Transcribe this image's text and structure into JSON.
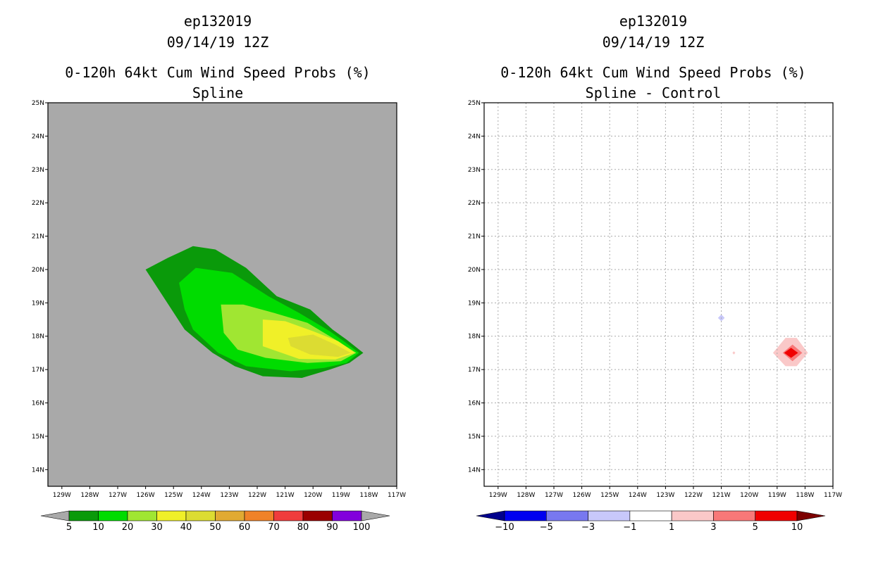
{
  "chart_data": [
    {
      "type": "heatmap",
      "panel": "left",
      "title": [
        "ep132019",
        "09/14/19 12Z",
        "0-120h 64kt Cum Wind Speed Probs (%)",
        "Spline"
      ],
      "x_ticks": [
        "129W",
        "128W",
        "127W",
        "126W",
        "125W",
        "124W",
        "123W",
        "122W",
        "121W",
        "120W",
        "119W",
        "118W",
        "117W"
      ],
      "y_ticks": [
        "14N",
        "15N",
        "16N",
        "17N",
        "18N",
        "19N",
        "20N",
        "21N",
        "22N",
        "23N",
        "24N",
        "25N"
      ],
      "xlim": [
        -129.5,
        -117
      ],
      "ylim": [
        13.5,
        25
      ],
      "background": "#a9a9a9",
      "grid": false,
      "contours": [
        {
          "level": 5,
          "color": "#0a9a0a",
          "polygon": [
            [
              -126,
              20
            ],
            [
              -125.2,
              20.35
            ],
            [
              -124.3,
              20.7
            ],
            [
              -123.5,
              20.6
            ],
            [
              -122.4,
              20.05
            ],
            [
              -121.3,
              19.2
            ],
            [
              -120.1,
              18.8
            ],
            [
              -119.3,
              18.2
            ],
            [
              -118.8,
              17.9
            ],
            [
              -118.2,
              17.5
            ],
            [
              -118.7,
              17.2
            ],
            [
              -119.4,
              17
            ],
            [
              -120.4,
              16.75
            ],
            [
              -121.8,
              16.8
            ],
            [
              -122.8,
              17.1
            ],
            [
              -123.6,
              17.5
            ],
            [
              -124.6,
              18.2
            ],
            [
              -125.3,
              19.1
            ]
          ]
        },
        {
          "level": 10,
          "color": "#00dc00",
          "polygon": [
            [
              -124.8,
              19.6
            ],
            [
              -124.2,
              20.05
            ],
            [
              -122.9,
              19.9
            ],
            [
              -121.6,
              19.2
            ],
            [
              -120.5,
              18.7
            ],
            [
              -119.4,
              18.15
            ],
            [
              -118.9,
              17.85
            ],
            [
              -118.35,
              17.5
            ],
            [
              -118.8,
              17.2
            ],
            [
              -119.6,
              17.05
            ],
            [
              -120.8,
              16.95
            ],
            [
              -122.4,
              17.1
            ],
            [
              -123.4,
              17.5
            ],
            [
              -124.3,
              18.2
            ],
            [
              -124.6,
              18.8
            ]
          ]
        },
        {
          "level": 20,
          "color": "#a0e632",
          "polygon": [
            [
              -123.3,
              18.95
            ],
            [
              -122.5,
              18.95
            ],
            [
              -121.4,
              18.7
            ],
            [
              -120.2,
              18.4
            ],
            [
              -119.2,
              17.9
            ],
            [
              -118.45,
              17.5
            ],
            [
              -119.0,
              17.25
            ],
            [
              -120.2,
              17.2
            ],
            [
              -121.7,
              17.35
            ],
            [
              -122.7,
              17.6
            ],
            [
              -123.2,
              18.1
            ]
          ]
        },
        {
          "level": 30,
          "color": "#f0f028",
          "polygon": [
            [
              -121.8,
              18.5
            ],
            [
              -121.0,
              18.45
            ],
            [
              -120.0,
              18.15
            ],
            [
              -119.1,
              17.85
            ],
            [
              -118.5,
              17.5
            ],
            [
              -119.2,
              17.3
            ],
            [
              -120.5,
              17.32
            ],
            [
              -121.8,
              17.7
            ]
          ]
        },
        {
          "level": 40,
          "color": "#dcdc32",
          "polygon": [
            [
              -120.9,
              17.95
            ],
            [
              -120.0,
              18.05
            ],
            [
              -119.2,
              17.75
            ],
            [
              -118.65,
              17.5
            ],
            [
              -119.1,
              17.38
            ],
            [
              -120.1,
              17.45
            ],
            [
              -120.8,
              17.7
            ]
          ]
        }
      ],
      "colorbar": {
        "labels": [
          "5",
          "10",
          "20",
          "30",
          "40",
          "50",
          "60",
          "70",
          "80",
          "90",
          "100"
        ],
        "colors": [
          "#a9a9a9",
          "#0a9a0a",
          "#00dc00",
          "#a0e632",
          "#f0f028",
          "#dcdc32",
          "#e1aa32",
          "#f08228",
          "#f03c3c",
          "#9a0000",
          "#8200dc",
          "#a9a9a9"
        ]
      }
    },
    {
      "type": "heatmap",
      "panel": "right",
      "title": [
        "ep132019",
        "09/14/19 12Z",
        "0-120h 64kt Cum Wind Speed Probs (%)",
        "Spline - Control"
      ],
      "x_ticks": [
        "129W",
        "128W",
        "127W",
        "126W",
        "125W",
        "124W",
        "123W",
        "122W",
        "121W",
        "120W",
        "119W",
        "118W",
        "117W"
      ],
      "y_ticks": [
        "14N",
        "15N",
        "16N",
        "17N",
        "18N",
        "19N",
        "20N",
        "21N",
        "22N",
        "23N",
        "24N",
        "25N"
      ],
      "xlim": [
        -129.5,
        -117
      ],
      "ylim": [
        13.5,
        25
      ],
      "background": "#ffffff",
      "grid": true,
      "contours": [
        {
          "level": 1,
          "color": "#fac8c8",
          "polygon": [
            [
              -118.3,
              17.95
            ],
            [
              -117.9,
              17.5
            ],
            [
              -118.3,
              17.1
            ],
            [
              -118.7,
              17.1
            ],
            [
              -119.15,
              17.5
            ],
            [
              -118.7,
              17.95
            ]
          ]
        },
        {
          "level": 3,
          "color": "#f87878",
          "polygon": [
            [
              -118.45,
              17.75
            ],
            [
              -118.1,
              17.5
            ],
            [
              -118.45,
              17.25
            ],
            [
              -118.8,
              17.5
            ]
          ]
        },
        {
          "level": 5,
          "color": "#f00000",
          "polygon": [
            [
              -118.5,
              17.65
            ],
            [
              -118.25,
              17.5
            ],
            [
              -118.5,
              17.35
            ],
            [
              -118.75,
              17.5
            ]
          ]
        },
        {
          "level": 1,
          "color": "#fac8c8",
          "polygon": [
            [
              -120.55,
              17.55
            ],
            [
              -120.5,
              17.5
            ],
            [
              -120.55,
              17.45
            ],
            [
              -120.6,
              17.5
            ]
          ]
        },
        {
          "level": -1,
          "color": "#c8c8fa",
          "polygon": [
            [
              -121.0,
              18.65
            ],
            [
              -120.88,
              18.55
            ],
            [
              -121.0,
              18.45
            ],
            [
              -121.12,
              18.55
            ]
          ]
        }
      ],
      "colorbar": {
        "labels": [
          "-10",
          "-5",
          "-3",
          "-1",
          "1",
          "3",
          "5",
          "10"
        ],
        "colors": [
          "#00008c",
          "#0000f0",
          "#7878f0",
          "#c8c8fa",
          "#ffffff",
          "#fac8c8",
          "#f87878",
          "#f00000",
          "#7d0000"
        ]
      }
    }
  ]
}
